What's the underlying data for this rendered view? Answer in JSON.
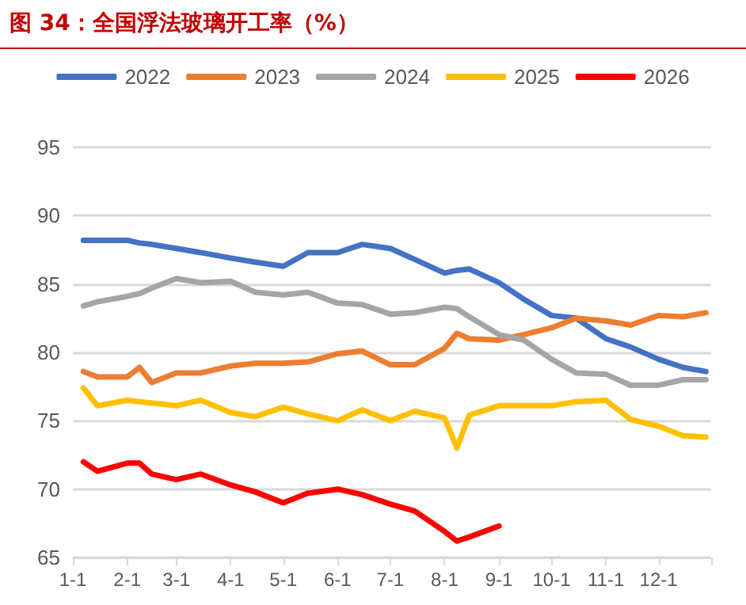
{
  "chart_data": {
    "type": "line",
    "title": "图 34：全国浮法玻璃开工率（%）",
    "x": [
      "--01-07",
      "--01-15",
      "--02-01",
      "--02-08",
      "--02-15",
      "--03-01",
      "--03-15",
      "--04-01",
      "--04-15",
      "--05-01",
      "--05-15",
      "--06-01",
      "--06-15",
      "--07-01",
      "--07-15",
      "--08-01",
      "--08-08",
      "--08-15",
      "--09-01",
      "--09-15",
      "--10-01",
      "--10-15",
      "--11-01",
      "--11-15",
      "--12-01",
      "--12-15",
      "--12-28"
    ],
    "series": [
      {
        "name": "2022",
        "color": "#4472c4",
        "values": [
          88.2,
          88.2,
          88.2,
          88.0,
          87.9,
          87.6,
          87.3,
          86.9,
          86.6,
          86.3,
          87.3,
          87.3,
          87.9,
          87.6,
          86.8,
          85.8,
          86.0,
          86.1,
          85.1,
          83.9,
          82.7,
          82.5,
          81.0,
          80.4,
          79.5,
          78.9,
          78.6
        ]
      },
      {
        "name": "2023",
        "color": "#ed7d31",
        "values": [
          78.6,
          78.2,
          78.2,
          78.9,
          77.8,
          78.5,
          78.5,
          79.0,
          79.2,
          79.2,
          79.3,
          79.9,
          80.1,
          79.1,
          79.1,
          80.3,
          81.4,
          81.0,
          80.9,
          81.3,
          81.8,
          82.5,
          82.3,
          82.0,
          82.7,
          82.6,
          82.9
        ]
      },
      {
        "name": "2024",
        "color": "#a5a5a5",
        "values": [
          83.4,
          83.7,
          84.1,
          84.3,
          84.7,
          85.4,
          85.1,
          85.2,
          84.4,
          84.2,
          84.4,
          83.6,
          83.5,
          82.8,
          82.9,
          83.3,
          83.2,
          82.6,
          81.3,
          80.9,
          79.5,
          78.5,
          78.4,
          77.6,
          77.6,
          78.0,
          78.0
        ]
      },
      {
        "name": "2025",
        "color": "#ffc000",
        "values": [
          77.4,
          76.1,
          76.5,
          76.4,
          76.3,
          76.1,
          76.5,
          75.6,
          75.3,
          76.0,
          75.5,
          75.0,
          75.8,
          75.0,
          75.7,
          75.2,
          73.0,
          75.4,
          76.1,
          76.1,
          76.1,
          76.4,
          76.5,
          75.1,
          74.6,
          73.9,
          73.8
        ]
      },
      {
        "name": "2026",
        "color": "#ff0000",
        "values": [
          72.0,
          71.3,
          71.9,
          71.9,
          71.1,
          70.7,
          71.1,
          70.3,
          69.8,
          69.0,
          69.7,
          70.0,
          69.6,
          68.9,
          68.4,
          66.9,
          66.2,
          66.5,
          67.3,
          null,
          null,
          null,
          null,
          null,
          null,
          null,
          null
        ]
      }
    ],
    "xlim": [
      "--01-01",
      "--12-31"
    ],
    "xticks": [
      {
        "value": "--01-01",
        "label": "1-1"
      },
      {
        "value": "--02-01",
        "label": "2-1"
      },
      {
        "value": "--03-01",
        "label": "3-1"
      },
      {
        "value": "--04-01",
        "label": "4-1"
      },
      {
        "value": "--05-01",
        "label": "5-1"
      },
      {
        "value": "--06-01",
        "label": "6-1"
      },
      {
        "value": "--07-01",
        "label": "7-1"
      },
      {
        "value": "--08-01",
        "label": "8-1"
      },
      {
        "value": "--09-01",
        "label": "9-1"
      },
      {
        "value": "--10-01",
        "label": "10-1"
      },
      {
        "value": "--11-01",
        "label": "11-1"
      },
      {
        "value": "--12-01",
        "label": "12-1"
      }
    ],
    "ylim": [
      65,
      95
    ],
    "yticks": [
      65,
      70,
      75,
      80,
      85,
      90,
      95
    ],
    "grid": "y",
    "legend": "top",
    "marker": "none",
    "line_style": "solid"
  }
}
